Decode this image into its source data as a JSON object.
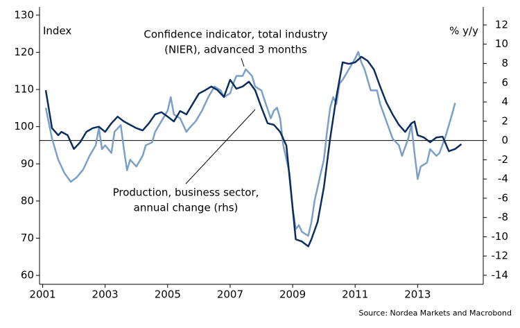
{
  "chart_data": {
    "type": "line",
    "y_label": "Index",
    "y2_label": "% y/y",
    "annotations": [
      "Confidence indicator, total industry",
      "(NIER), advanced 3 months",
      "Production, business sector,",
      "annual change (rhs)"
    ],
    "source": "Source: Nordea Markets and Macrobond",
    "xlim": [
      2000.9,
      2015.1
    ],
    "xticks": [
      2001,
      2003,
      2005,
      2007,
      2009,
      2011,
      2013
    ],
    "ylim": [
      57.6,
      132.2
    ],
    "yticks": [
      60,
      70,
      80,
      90,
      100,
      110,
      120,
      130
    ],
    "y2lim": [
      -14.94,
      13.87
    ],
    "y2ticks": [
      -14,
      -12,
      -10,
      -8,
      -6,
      -4,
      -2,
      0,
      2,
      4,
      6,
      8,
      10,
      12
    ],
    "zero_line": 0,
    "series": [
      {
        "name": "Confidence indicator, total industry (NIER), advanced 3 months",
        "color": "#0b2d5e",
        "axis": "y",
        "x": [
          2001.1,
          2001.3,
          2001.5,
          2001.6,
          2001.8,
          2002.0,
          2002.2,
          2002.4,
          2002.6,
          2002.8,
          2003.0,
          2003.2,
          2003.4,
          2003.6,
          2003.8,
          2004.0,
          2004.2,
          2004.4,
          2004.6,
          2004.8,
          2005.0,
          2005.2,
          2005.4,
          2005.6,
          2005.8,
          2006.0,
          2006.2,
          2006.4,
          2006.6,
          2006.8,
          2007.0,
          2007.2,
          2007.4,
          2007.6,
          2007.8,
          2008.0,
          2008.2,
          2008.4,
          2008.6,
          2008.8,
          2009.0,
          2009.1,
          2009.3,
          2009.5,
          2009.6,
          2009.8,
          2010.0,
          2010.2,
          2010.4,
          2010.6,
          2010.8,
          2011.0,
          2011.2,
          2011.4,
          2011.6,
          2011.8,
          2012.0,
          2012.2,
          2012.4,
          2012.6,
          2012.8,
          2012.9,
          2013.0,
          2013.2,
          2013.4,
          2013.6,
          2013.8,
          2014.0,
          2014.2,
          2014.4
        ],
        "values": [
          109.8,
          99.6,
          97.7,
          98.6,
          97.7,
          94,
          95.8,
          98.6,
          99.6,
          100,
          98.6,
          100.9,
          102.7,
          101.4,
          100.5,
          99.6,
          99,
          100.9,
          103.3,
          103.9,
          102.7,
          101.4,
          104.2,
          103.3,
          106.1,
          108.9,
          109.8,
          110.8,
          109.8,
          108,
          112.6,
          110.2,
          110.8,
          112.1,
          109.8,
          105.2,
          100.9,
          100.5,
          98.6,
          94.9,
          78.1,
          69.7,
          69.1,
          67.8,
          69.7,
          74.4,
          83.7,
          96.8,
          108,
          117.3,
          116.9,
          117.3,
          118.8,
          117.7,
          115.4,
          110.8,
          106.5,
          103.3,
          100.5,
          98.6,
          100.9,
          101.4,
          97.7,
          97.1,
          95.8,
          97.1,
          97.3,
          93.4,
          94,
          95.3
        ]
      },
      {
        "name": "Production, business sector, annual change (rhs)",
        "color": "#7a9fc8",
        "axis": "y2",
        "x": [
          2001.1,
          2001.3,
          2001.5,
          2001.7,
          2001.9,
          2002.1,
          2002.3,
          2002.5,
          2002.7,
          2002.8,
          2002.9,
          2003.0,
          2003.2,
          2003.3,
          2003.5,
          2003.6,
          2003.7,
          2003.8,
          2004.0,
          2004.2,
          2004.3,
          2004.5,
          2004.6,
          2004.8,
          2005.0,
          2005.1,
          2005.2,
          2005.4,
          2005.6,
          2005.7,
          2005.9,
          2006.1,
          2006.3,
          2006.5,
          2006.7,
          2006.8,
          2007.0,
          2007.1,
          2007.2,
          2007.4,
          2007.5,
          2007.7,
          2007.8,
          2008.0,
          2008.1,
          2008.3,
          2008.4,
          2008.5,
          2008.6,
          2008.7,
          2008.9,
          2009.0,
          2009.1,
          2009.2,
          2009.3,
          2009.5,
          2009.6,
          2009.7,
          2009.9,
          2010.0,
          2010.1,
          2010.2,
          2010.3,
          2010.4,
          2010.5,
          2010.6,
          2010.8,
          2011.0,
          2011.1,
          2011.2,
          2011.3,
          2011.5,
          2011.7,
          2011.8,
          2012.0,
          2012.2,
          2012.4,
          2012.5,
          2012.7,
          2012.8,
          2012.9,
          2013.0,
          2013.1,
          2013.3,
          2013.4,
          2013.6,
          2013.7,
          2013.9,
          2014.0,
          2014.1,
          2014.2
        ],
        "values": [
          3.4,
          0.2,
          -2,
          -3.4,
          -4.3,
          -3.8,
          -3,
          -1.6,
          -0.5,
          1.3,
          -0.9,
          -0.5,
          -1.3,
          0.9,
          1.6,
          -0.9,
          -3.1,
          -2,
          -2.7,
          -1.6,
          -0.5,
          -0.2,
          0.9,
          2,
          3.1,
          4.5,
          2.7,
          2.3,
          0.9,
          1.3,
          2,
          3.1,
          4.5,
          5.6,
          5.2,
          4.5,
          4.9,
          5.9,
          6.7,
          6.7,
          7.4,
          6.7,
          5.6,
          5.2,
          4.2,
          2.3,
          3.1,
          3.4,
          2.3,
          -0.5,
          -3.4,
          -7,
          -9.2,
          -8.8,
          -9.5,
          -9.9,
          -8.5,
          -6.3,
          -3.4,
          -2,
          0.9,
          3.4,
          4.5,
          3.8,
          5.9,
          6.3,
          7.4,
          8.5,
          9.2,
          8.1,
          7.4,
          5.2,
          5.2,
          3.8,
          2,
          0.2,
          -0.5,
          -1.6,
          0.2,
          1.6,
          -1.3,
          -4,
          -2.7,
          -2.3,
          -0.9,
          -1.6,
          -1.3,
          0.5,
          1.6,
          2.7,
          3.9
        ]
      }
    ]
  }
}
